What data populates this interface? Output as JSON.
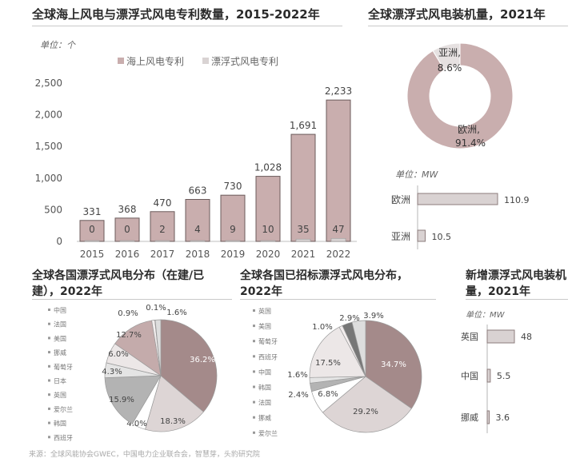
{
  "panel_titles": {
    "patents": "全球海上风电与漂浮式风电专利数量，2015-2022年",
    "donut": "全球漂浮式风电装机量，2021年",
    "pie_construction": "全球各国漂浮式风电分布（在建/已建），2022年",
    "pie_tendered": "全球各国已招标漂浮式风电分布，2022年",
    "new_installed": "新增漂浮式风电装机量，2021年"
  },
  "source": "来源：全球风能协会GWEC，中国电力企业联合会，智慧芽，头豹研究院",
  "chart_data": [
    {
      "id": "patents",
      "type": "bar",
      "unit_label": "单位：个",
      "categories": [
        "2015",
        "2016",
        "2017",
        "2018",
        "2019",
        "2020",
        "2021",
        "2022"
      ],
      "category_labels": [
        "2015",
        "2016",
        "2017",
        "2018",
        "2019",
        "2020",
        "2021",
        "2022"
      ],
      "series": [
        {
          "name": "海上风电专利",
          "color": "#c9aeae",
          "values": [
            331,
            368,
            470,
            663,
            730,
            1028,
            1691,
            2233
          ],
          "labels": [
            "331",
            "368",
            "470",
            "663",
            "730",
            "1,028",
            "1,691",
            "2,233"
          ]
        },
        {
          "name": "漂浮式风电专利",
          "color": "#d9d3d3",
          "values": [
            0,
            0,
            2,
            4,
            9,
            10,
            35,
            47
          ],
          "labels": [
            "0",
            "0",
            "2",
            "4",
            "9",
            "10",
            "35",
            "47"
          ]
        }
      ],
      "yticks": [
        0,
        500,
        1000,
        1500,
        2000,
        2500
      ],
      "ytick_labels": [
        "0",
        "500",
        "1,000",
        "1,500",
        "2,000",
        "2,500"
      ],
      "ylim": [
        0,
        2500
      ]
    },
    {
      "id": "donut",
      "type": "pie",
      "slices": [
        {
          "label": "欧洲,",
          "value_label": "91.4%",
          "value": 91.4,
          "color": "#c9aeae"
        },
        {
          "label": "亚洲,",
          "value_label": "8.6%",
          "value": 8.6,
          "color": "#e6e1e1"
        }
      ]
    },
    {
      "id": "hbar_region",
      "type": "bar",
      "orientation": "horizontal",
      "unit_label": "单位：MW",
      "categories": [
        "欧洲",
        "亚洲"
      ],
      "values": [
        110.9,
        10.5
      ],
      "value_labels": [
        "110.9",
        "10.5"
      ],
      "color": "#d9d2d2"
    },
    {
      "id": "pie_construction",
      "type": "pie",
      "legend": [
        "中国",
        "法国",
        "美国",
        "挪威",
        "葡萄牙",
        "日本",
        "英国",
        "爱尔兰",
        "韩国",
        "西班牙"
      ],
      "slices": [
        {
          "value": 36.2,
          "label": "36.2%",
          "color": "#a48a8a"
        },
        {
          "value": 18.3,
          "label": "18.3%",
          "color": "#ddd5d5"
        },
        {
          "value": 4.0,
          "label": "4.0%",
          "color": "#ffffff"
        },
        {
          "value": 15.9,
          "label": "15.9%",
          "color": "#b3b3b3"
        },
        {
          "value": 4.3,
          "label": "4.3%",
          "color": "#e4e4e4"
        },
        {
          "value": 6.0,
          "label": "6.0%",
          "color": "#ece7e7"
        },
        {
          "value": 12.7,
          "label": "12.7%",
          "color": "#c4abab"
        },
        {
          "value": 0.9,
          "label": "0.9%",
          "color": "#f2eded"
        },
        {
          "value": 0.1,
          "label": "0.1%",
          "color": "#aaaaaa"
        },
        {
          "value": 1.6,
          "label": "1.6%",
          "color": "#dddddd"
        }
      ]
    },
    {
      "id": "pie_tendered",
      "type": "pie",
      "legend": [
        "英国",
        "美国",
        "葡萄牙",
        "西班牙",
        "中国",
        "韩国",
        "法国",
        "挪威",
        "爱尔兰"
      ],
      "slices": [
        {
          "value": 34.7,
          "label": "34.7%",
          "color": "#a48a8a"
        },
        {
          "value": 29.2,
          "label": "29.2%",
          "color": "#ddd5d5"
        },
        {
          "value": 6.8,
          "label": "6.8%",
          "color": "#ffffff"
        },
        {
          "value": 2.4,
          "label": "2.4%",
          "color": "#b3b3b3"
        },
        {
          "value": 1.6,
          "label": "1.6%",
          "color": "#e4e4e4"
        },
        {
          "value": 17.5,
          "label": "17.5%",
          "color": "#ece7e7"
        },
        {
          "value": 1.0,
          "label": "1.0%",
          "color": "#f2eded"
        },
        {
          "value": 2.9,
          "label": "2.9%",
          "color": "#777777"
        },
        {
          "value": 3.9,
          "label": "3.9%",
          "color": "#dddddd"
        }
      ]
    },
    {
      "id": "hbar_country",
      "type": "bar",
      "orientation": "horizontal",
      "unit_label": "单位：MW",
      "categories": [
        "英国",
        "中国",
        "挪威"
      ],
      "values": [
        48,
        5.5,
        3.6
      ],
      "value_labels": [
        "48",
        "5.5",
        "3.6"
      ],
      "color": "#d9d2d2"
    }
  ]
}
